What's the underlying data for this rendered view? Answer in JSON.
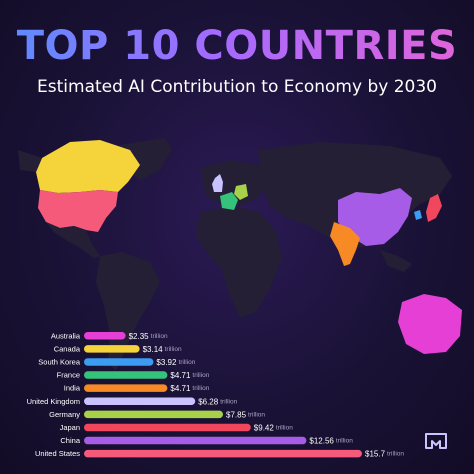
{
  "header": {
    "title": "TOP 10 COUNTRIES",
    "subtitle": "Estimated AI Contribution to Economy by 2030"
  },
  "chart_data": {
    "type": "bar",
    "orientation": "horizontal",
    "title": "TOP 10 COUNTRIES",
    "subtitle": "Estimated AI Contribution to Economy by 2030",
    "unit": "trillion",
    "value_prefix": "$",
    "categories": [
      "Australia",
      "Canada",
      "South Korea",
      "France",
      "India",
      "United Kingdom",
      "Germany",
      "Japan",
      "China",
      "United States"
    ],
    "values": [
      2.35,
      3.14,
      3.92,
      4.71,
      4.71,
      6.28,
      7.85,
      9.42,
      12.56,
      15.7
    ],
    "value_labels": [
      "$2.35",
      "$3.14",
      "$3.92",
      "$4.71",
      "$4.71",
      "$6.28",
      "$7.85",
      "$9.42",
      "$12.56",
      "$15.7"
    ],
    "colors": [
      "#e63fd6",
      "#f5d33a",
      "#3b9cf2",
      "#35c27a",
      "#f78a24",
      "#c9c3ff",
      "#a8d14a",
      "#f0475c",
      "#a65ce6",
      "#f55a7a"
    ],
    "xlim": [
      0,
      15.7
    ],
    "grid": false,
    "legend": "none"
  },
  "map": {
    "land_color": "#241f35",
    "country_colors": {
      "united_states": "#f55a7a",
      "canada": "#f5d33a",
      "china": "#a65ce6",
      "india": "#f78a24",
      "japan": "#f0475c",
      "south_korea": "#3b9cf2",
      "australia": "#e63fd6",
      "germany": "#a8d14a",
      "france": "#35c27a",
      "united_kingdom": "#c9c3ff"
    }
  },
  "logo": {
    "icon": "brand-logo-icon"
  }
}
